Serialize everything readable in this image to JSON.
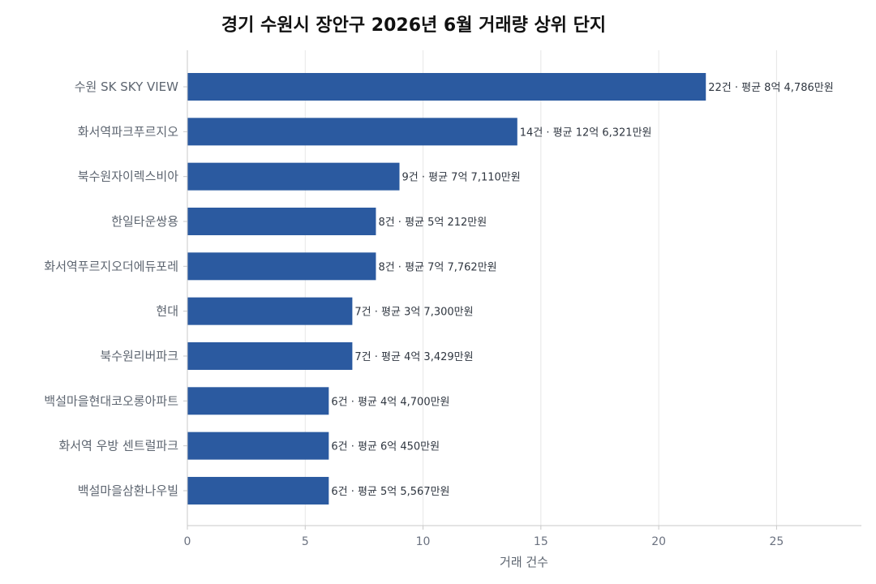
{
  "chart_data": {
    "type": "bar",
    "orientation": "horizontal",
    "title": "경기 수원시 장안구 2026년 6월 거래량 상위 단지",
    "xlabel": "거래 건수",
    "ylabel": "",
    "xlim": [
      0,
      28.6
    ],
    "xticks": [
      0,
      5,
      10,
      15,
      20,
      25
    ],
    "grid": "vertical",
    "bar_color": "#2b5aa0",
    "categories": [
      "수원 SK SKY VIEW",
      "화서역파크푸르지오",
      "북수원자이렉스비아",
      "한일타운쌍용",
      "화서역푸르지오더에듀포레",
      "현대",
      "북수원리버파크",
      "백설마을현대코오롱아파트",
      "화서역 우방 센트럴파크",
      "백설마을삼환나우빌"
    ],
    "values": [
      22,
      14,
      9,
      8,
      8,
      7,
      7,
      6,
      6,
      6
    ],
    "data_labels": [
      "22건 · 평균 8억 4,786만원",
      "14건 · 평균 12억 6,321만원",
      "9건 · 평균 7억 7,110만원",
      "8건 · 평균 5억 212만원",
      "8건 · 평균 7억 7,762만원",
      "7건 · 평균 3억 7,300만원",
      "7건 · 평균 4억 3,429만원",
      "6건 · 평균 4억 4,700만원",
      "6건 · 평균 6억 450만원",
      "6건 · 평균 5억 5,567만원"
    ]
  }
}
